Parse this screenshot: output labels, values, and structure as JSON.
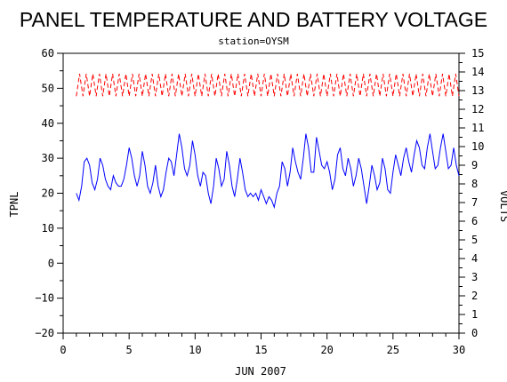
{
  "chart_data": {
    "type": "line",
    "title": "PANEL TEMPERATURE AND BATTERY VOLTAGE",
    "subtitle": "station=OYSM",
    "xlabel": "JUN 2007",
    "ylabel_left": "TPNL",
    "ylabel_right": "VOLTS",
    "xlim": [
      0,
      30
    ],
    "ylim_left": [
      -20,
      60
    ],
    "ylim_right": [
      0,
      15
    ],
    "x_ticks": [
      0,
      5,
      10,
      15,
      20,
      25,
      30
    ],
    "y_left_ticks": [
      -20,
      -10,
      0,
      10,
      20,
      30,
      40,
      50,
      60
    ],
    "y_right_ticks": [
      0,
      1,
      2,
      3,
      4,
      5,
      6,
      7,
      8,
      9,
      10,
      11,
      12,
      13,
      14,
      15
    ],
    "grid": false,
    "legend": "none",
    "series": [
      {
        "axis": "left",
        "color": "#0000ff",
        "style": "solid",
        "points": [
          [
            1.0,
            20
          ],
          [
            1.2,
            18
          ],
          [
            1.4,
            22
          ],
          [
            1.6,
            29
          ],
          [
            1.8,
            30
          ],
          [
            2.0,
            28
          ],
          [
            2.2,
            23
          ],
          [
            2.4,
            21
          ],
          [
            2.6,
            24
          ],
          [
            2.8,
            30
          ],
          [
            3.0,
            28
          ],
          [
            3.2,
            24
          ],
          [
            3.4,
            22
          ],
          [
            3.6,
            21
          ],
          [
            3.8,
            25
          ],
          [
            4.0,
            23
          ],
          [
            4.2,
            22
          ],
          [
            4.4,
            22
          ],
          [
            4.6,
            24
          ],
          [
            4.8,
            28
          ],
          [
            5.0,
            33
          ],
          [
            5.2,
            30
          ],
          [
            5.4,
            25
          ],
          [
            5.6,
            22
          ],
          [
            5.8,
            25
          ],
          [
            6.0,
            32
          ],
          [
            6.2,
            28
          ],
          [
            6.4,
            22
          ],
          [
            6.6,
            20
          ],
          [
            6.8,
            23
          ],
          [
            7.0,
            28
          ],
          [
            7.2,
            22
          ],
          [
            7.4,
            19
          ],
          [
            7.6,
            21
          ],
          [
            7.8,
            26
          ],
          [
            8.0,
            30
          ],
          [
            8.2,
            29
          ],
          [
            8.4,
            25
          ],
          [
            8.6,
            31
          ],
          [
            8.8,
            37
          ],
          [
            9.0,
            33
          ],
          [
            9.2,
            27
          ],
          [
            9.4,
            25
          ],
          [
            9.6,
            28
          ],
          [
            9.8,
            35
          ],
          [
            10.0,
            31
          ],
          [
            10.2,
            25
          ],
          [
            10.4,
            22
          ],
          [
            10.6,
            26
          ],
          [
            10.8,
            25
          ],
          [
            11.0,
            20
          ],
          [
            11.2,
            17
          ],
          [
            11.4,
            22
          ],
          [
            11.6,
            30
          ],
          [
            11.8,
            27
          ],
          [
            12.0,
            22
          ],
          [
            12.2,
            24
          ],
          [
            12.4,
            32
          ],
          [
            12.6,
            28
          ],
          [
            12.8,
            22
          ],
          [
            13.0,
            19
          ],
          [
            13.2,
            24
          ],
          [
            13.4,
            30
          ],
          [
            13.6,
            26
          ],
          [
            13.8,
            21
          ],
          [
            14.0,
            19
          ],
          [
            14.2,
            20
          ],
          [
            14.4,
            19
          ],
          [
            14.6,
            20
          ],
          [
            14.8,
            18
          ],
          [
            15.0,
            21
          ],
          [
            15.2,
            19
          ],
          [
            15.4,
            17
          ],
          [
            15.6,
            19
          ],
          [
            15.8,
            18
          ],
          [
            16.0,
            16
          ],
          [
            16.2,
            20
          ],
          [
            16.4,
            22
          ],
          [
            16.6,
            29
          ],
          [
            16.8,
            27
          ],
          [
            17.0,
            22
          ],
          [
            17.2,
            26
          ],
          [
            17.4,
            33
          ],
          [
            17.6,
            29
          ],
          [
            17.8,
            26
          ],
          [
            18.0,
            24
          ],
          [
            18.2,
            30
          ],
          [
            18.4,
            37
          ],
          [
            18.6,
            33
          ],
          [
            18.8,
            26
          ],
          [
            19.0,
            26
          ],
          [
            19.2,
            36
          ],
          [
            19.4,
            32
          ],
          [
            19.6,
            28
          ],
          [
            19.8,
            27
          ],
          [
            20.0,
            29
          ],
          [
            20.2,
            26
          ],
          [
            20.4,
            21
          ],
          [
            20.6,
            24
          ],
          [
            20.8,
            31
          ],
          [
            21.0,
            33
          ],
          [
            21.2,
            27
          ],
          [
            21.4,
            25
          ],
          [
            21.6,
            30
          ],
          [
            21.8,
            27
          ],
          [
            22.0,
            22
          ],
          [
            22.2,
            25
          ],
          [
            22.4,
            30
          ],
          [
            22.6,
            27
          ],
          [
            22.8,
            22
          ],
          [
            23.0,
            17
          ],
          [
            23.2,
            22
          ],
          [
            23.4,
            28
          ],
          [
            23.6,
            25
          ],
          [
            23.8,
            21
          ],
          [
            24.0,
            23
          ],
          [
            24.2,
            30
          ],
          [
            24.4,
            27
          ],
          [
            24.6,
            21
          ],
          [
            24.8,
            20
          ],
          [
            25.0,
            26
          ],
          [
            25.2,
            31
          ],
          [
            25.4,
            28
          ],
          [
            25.6,
            25
          ],
          [
            25.8,
            30
          ],
          [
            26.0,
            33
          ],
          [
            26.2,
            29
          ],
          [
            26.4,
            26
          ],
          [
            26.6,
            31
          ],
          [
            26.8,
            35
          ],
          [
            27.0,
            33
          ],
          [
            27.2,
            28
          ],
          [
            27.4,
            27
          ],
          [
            27.6,
            33
          ],
          [
            27.8,
            37
          ],
          [
            28.0,
            32
          ],
          [
            28.2,
            27
          ],
          [
            28.4,
            28
          ],
          [
            28.6,
            33
          ],
          [
            28.8,
            37
          ],
          [
            29.0,
            32
          ],
          [
            29.2,
            27
          ],
          [
            29.4,
            28
          ],
          [
            29.6,
            33
          ],
          [
            29.8,
            28
          ],
          [
            30.0,
            25
          ]
        ]
      },
      {
        "axis": "right",
        "color": "#ff0000",
        "style": "dashed",
        "envelope": {
          "start": 1.0,
          "end": 30.0,
          "period_days": 0.5,
          "low": 12.7,
          "high": 13.9
        },
        "low_volts": 12.7,
        "high_volts": 13.9
      }
    ]
  }
}
